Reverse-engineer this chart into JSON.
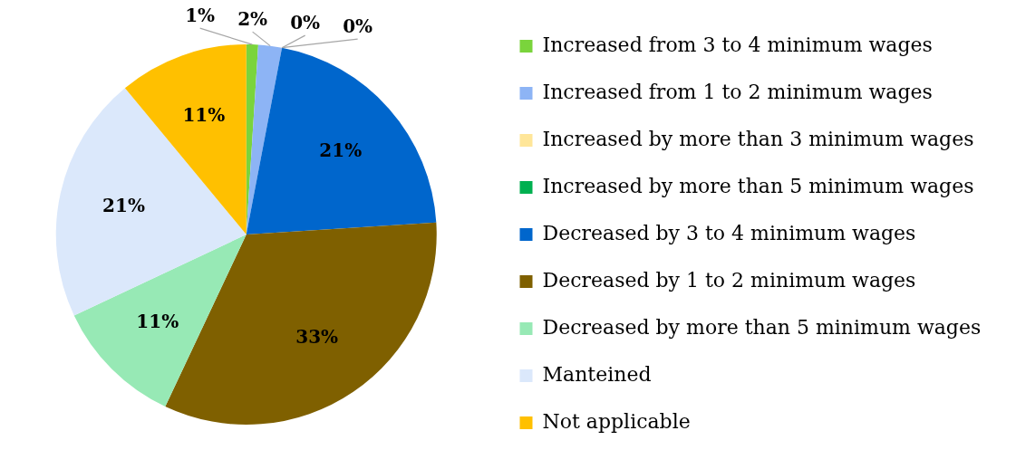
{
  "chart_data": {
    "type": "pie",
    "categories": [
      "Increased from 3 to 4 minimum wages",
      "Increased from 1 to 2 minimum wages",
      "Increased by more than 3 minimum wages",
      "Increased by more than 5 minimum wages",
      "Decreased by 3 to 4 minimum wages",
      "Decreased by 1 to 2 minimum wages",
      "Decreased by more than 5 minimum wages",
      "Manteined",
      "Not applicable"
    ],
    "values": [
      1,
      2,
      0,
      0,
      21,
      33,
      11,
      21,
      11
    ],
    "value_labels": [
      "1%",
      "2%",
      "0%",
      "0%",
      "21%",
      "33%",
      "11%",
      "21%",
      "11%"
    ],
    "colors": [
      "#7ad43c",
      "#8db4f5",
      "#ffe699",
      "#00b050",
      "#0066cc",
      "#7f6000",
      "#97e9b5",
      "#dbe8fb",
      "#ffc000"
    ],
    "legend": "right"
  }
}
